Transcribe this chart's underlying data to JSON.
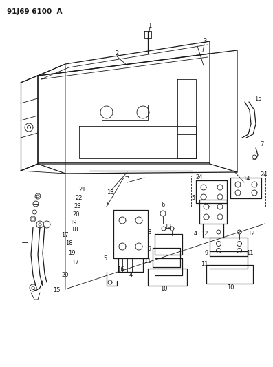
{
  "title": "91J69 6100  A",
  "bg_color": "#ffffff",
  "line_color": "#1a1a1a",
  "fig_width": 3.97,
  "fig_height": 5.33,
  "dpi": 100,
  "lw_main": 0.9,
  "lw_thin": 0.6,
  "label_fs": 6.0,
  "title_fs": 7.5
}
